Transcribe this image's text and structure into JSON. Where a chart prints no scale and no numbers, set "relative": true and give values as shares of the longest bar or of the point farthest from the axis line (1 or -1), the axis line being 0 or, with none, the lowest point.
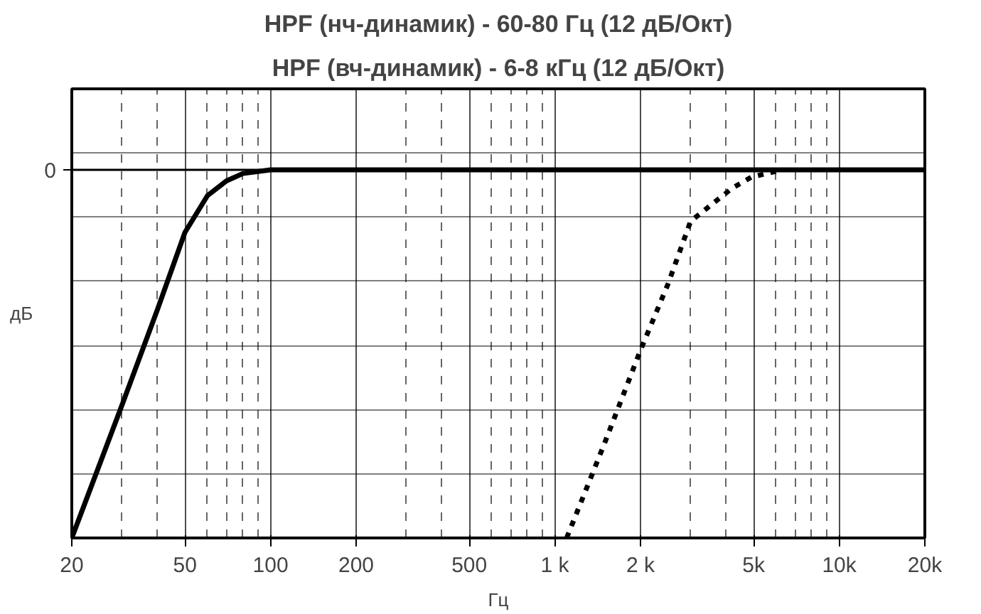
{
  "chart_data": {
    "type": "line",
    "title": "HPF (нч-динамик) - 60-80 Гц (12 дБ/Окт)",
    "subtitle": "HPF (вч-динамик) - 6-8 кГц (12 дБ/Окт)",
    "xlabel": "Гц",
    "ylabel": "дБ",
    "relative": true,
    "log": "x",
    "grid": true,
    "xlim": [
      20,
      20000
    ],
    "xticks": [
      20,
      50,
      100,
      200,
      500,
      {
        "value": 1000,
        "label": "1 k"
      },
      {
        "value": 2000,
        "label": "2 k"
      },
      {
        "value": 5000,
        "label": "5k"
      },
      {
        "value": 10000,
        "label": "10k"
      },
      {
        "value": 20000,
        "label": "20k"
      }
    ],
    "ref_lines": [
      {
        "axis": "y",
        "value": 0,
        "label": "0",
        "color": "#000000"
      }
    ],
    "series": [
      {
        "color": "#000000",
        "line_style": "solid",
        "x": [
          20,
          30,
          40,
          50,
          60,
          70,
          80,
          100,
          20000
        ],
        "values": [
          -1,
          -0.64,
          -0.38,
          -0.17,
          -0.07,
          -0.03,
          -0.01,
          0,
          0
        ]
      },
      {
        "color": "#000000",
        "line_style": "dotted",
        "x": [
          1100,
          1500,
          2000,
          2500,
          3000,
          4200,
          4900,
          6300
        ],
        "values": [
          -1,
          -0.74,
          -0.49,
          -0.31,
          -0.14,
          -0.05,
          -0.02,
          0
        ]
      }
    ]
  }
}
